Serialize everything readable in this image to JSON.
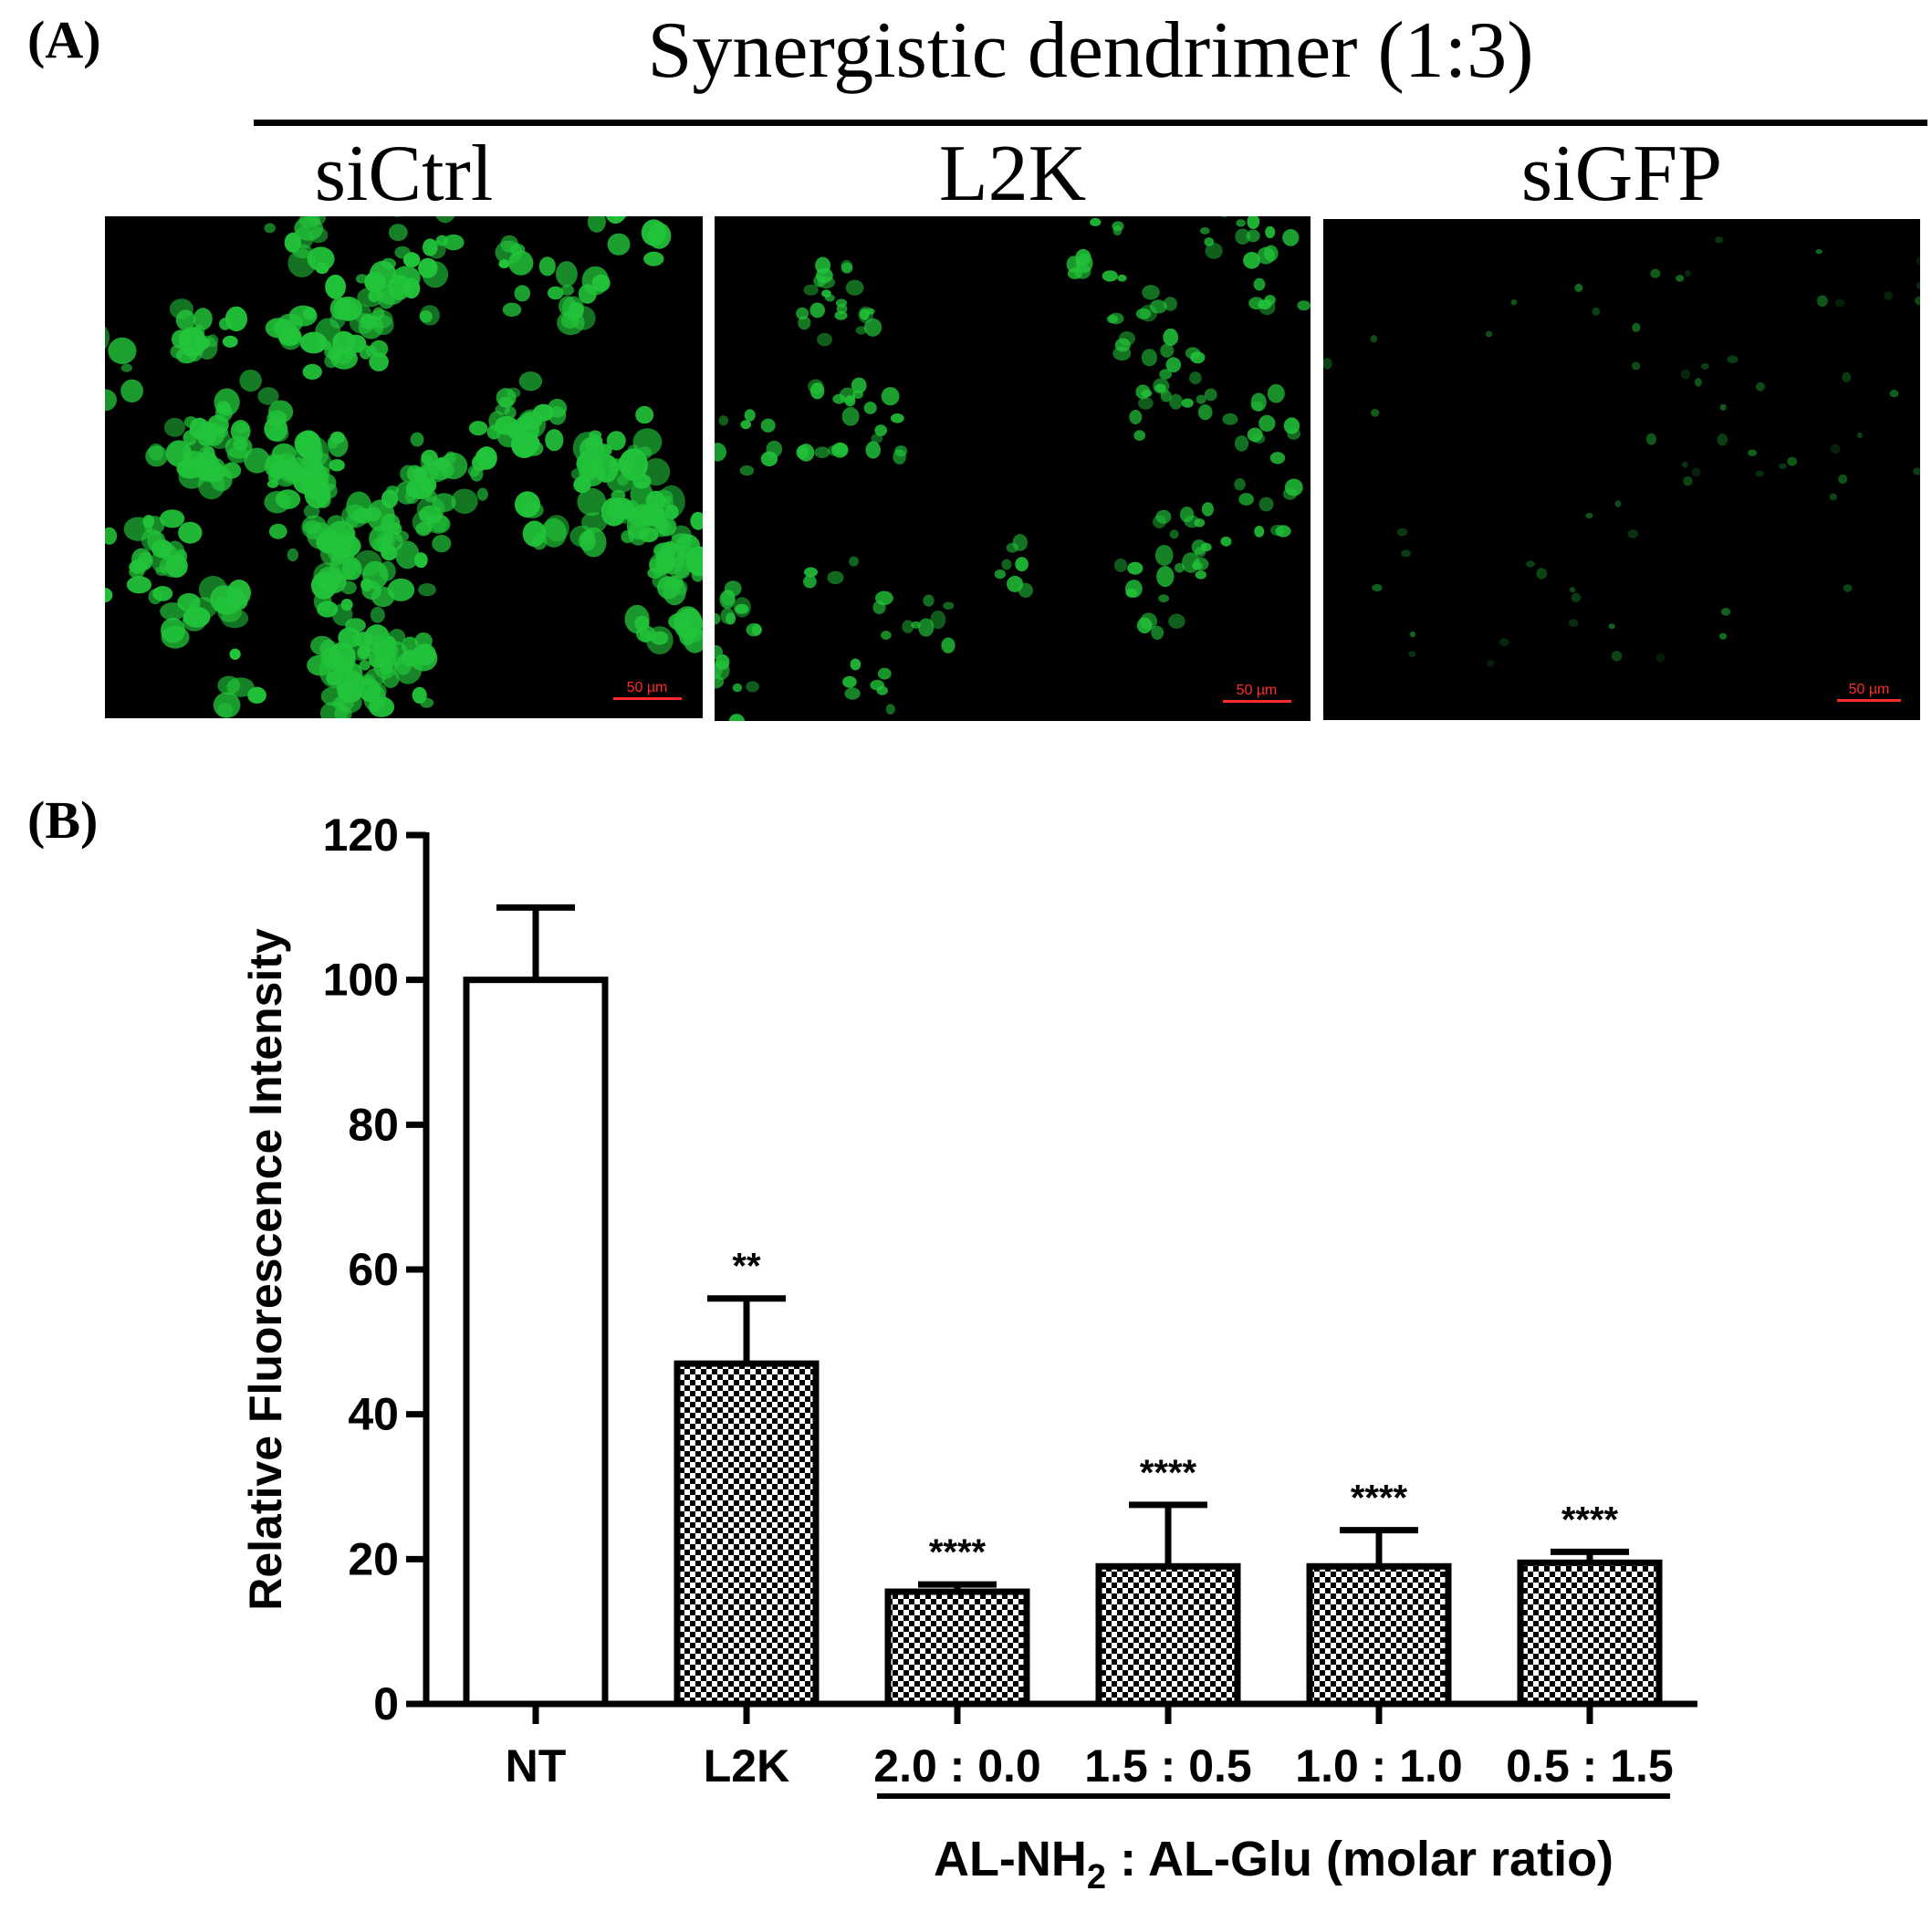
{
  "panel_a": {
    "label": "(A)",
    "title": "Synergistic dendrimer (1:3)",
    "images": [
      {
        "label": "siCtrl",
        "scale_bar": "50 µm",
        "intensity": "high"
      },
      {
        "label": "L2K",
        "scale_bar": "50 µm",
        "intensity": "medium"
      },
      {
        "label": "siGFP",
        "scale_bar": "50 µm",
        "intensity": "low"
      }
    ],
    "colors": {
      "fluorescence": "#22c43a",
      "background": "#000000",
      "scale_bar": "#ff2a2a"
    }
  },
  "panel_b": {
    "label": "(B)"
  },
  "chart_data": {
    "type": "bar",
    "categories": [
      "NT",
      "L2K",
      "2.0 : 0.0",
      "1.5 : 0.5",
      "1.0 : 1.0",
      "0.5 : 1.5"
    ],
    "values": [
      100,
      47,
      15.5,
      19,
      19,
      19.5
    ],
    "error_upper": [
      10,
      9,
      1,
      8.5,
      5,
      1.5
    ],
    "significance": [
      "",
      "**",
      "****",
      "****",
      "****",
      "****"
    ],
    "fills": [
      "white",
      "checker",
      "checker",
      "checker",
      "checker",
      "checker"
    ],
    "ylabel": "Relative Fluorescence Intensity",
    "xlabel": "AL-NH2 : AL-Glu (molar ratio)",
    "xlabel_parts": {
      "pre": "AL-NH",
      "sub": "2",
      "post": " : AL-Glu (molar ratio)"
    },
    "group_bracket_from": 2,
    "ylim": [
      0,
      120
    ],
    "yticks": [
      0,
      20,
      40,
      60,
      80,
      100,
      120
    ],
    "grid": false,
    "legend": "none"
  }
}
